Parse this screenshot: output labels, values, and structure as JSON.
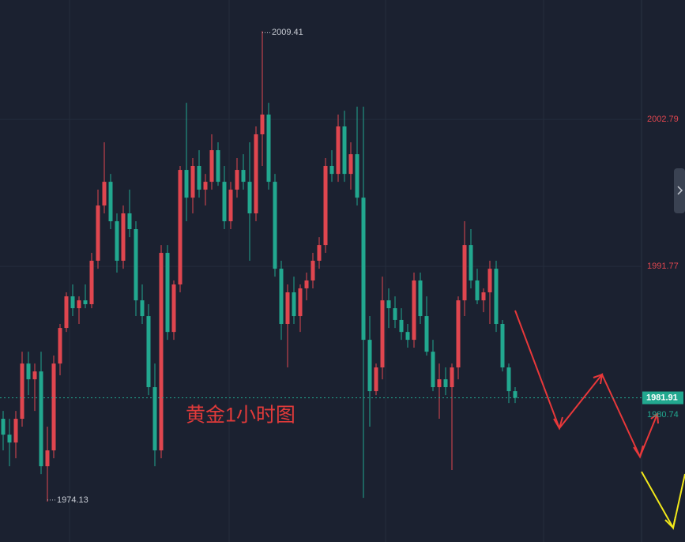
{
  "chart_data": {
    "type": "candlestick",
    "annotation": "黄金1小时图",
    "ylim": [
      1971.1,
      2011.74
    ],
    "yticks": [
      2002.79,
      1991.77
    ],
    "high_label": 2009.41,
    "low_label": 1974.13,
    "last_price": 1981.91,
    "second_price": 1980.74,
    "up_color": "#e0464f",
    "down_color": "#22a88f",
    "open": [
      1980.34,
      1979.15,
      1978.56,
      1980.34,
      1984.48,
      1983.3,
      1983.89,
      1976.78,
      1977.97,
      1984.48,
      1987.15,
      1989.52,
      1988.63,
      1989.22,
      1988.93,
      1992.19,
      1996.33,
      1998.11,
      1995.15,
      1992.19,
      1995.74,
      1994.56,
      1989.22,
      1988.04,
      1982.71,
      1977.97,
      1992.78,
      1986.85,
      1990.41,
      1999.0,
      1996.92,
      1999.3,
      1997.52,
      1998.11,
      2000.48,
      1998.11,
      1995.15,
      1997.52,
      1999.0,
      1998.11,
      1995.74,
      2001.67,
      2003.15,
      1998.11,
      1991.59,
      1987.45,
      1989.82,
      1988.04,
      1990.12,
      1990.71,
      1992.19,
      1993.37,
      1999.3,
      1998.7,
      2002.26,
      1998.7,
      2000.18,
      1996.92,
      1986.26,
      1982.41,
      1984.19,
      1989.22,
      1988.63,
      1987.75,
      1986.85,
      1986.26,
      1990.71,
      1988.04,
      1985.37,
      1982.71,
      1983.3,
      1982.71,
      1984.19,
      1989.22,
      1993.37,
      1990.71,
      1989.22,
      1989.82,
      1991.59,
      1987.45,
      1984.19,
      1982.41
    ],
    "high": [
      1980.93,
      1980.34,
      1980.93,
      1985.37,
      1985.37,
      1984.48,
      1985.37,
      1979.75,
      1985.08,
      1987.45,
      1989.82,
      1990.41,
      1989.52,
      1990.41,
      1992.78,
      1997.52,
      2001.07,
      1998.7,
      1995.74,
      1996.33,
      1997.52,
      1995.15,
      1990.41,
      1988.93,
      1984.48,
      1993.37,
      1993.37,
      1990.71,
      1999.3,
      2004.03,
      1999.89,
      2000.48,
      1998.7,
      2001.67,
      2001.07,
      1999.3,
      1998.11,
      1999.89,
      2000.18,
      2001.07,
      2002.26,
      2009.41,
      2004.03,
      1998.7,
      1992.19,
      1990.41,
      1991.0,
      1990.41,
      1991.3,
      1992.78,
      1993.96,
      1999.89,
      2000.48,
      2003.15,
      2003.44,
      2001.07,
      2003.74,
      2003.74,
      1988.04,
      1984.48,
      1991.0,
      1990.12,
      1989.52,
      1988.63,
      1987.45,
      1991.3,
      1991.3,
      1989.52,
      1986.26,
      1984.48,
      1984.19,
      1984.48,
      1989.52,
      1995.15,
      1994.56,
      1991.59,
      1990.12,
      1992.19,
      1992.19,
      1987.75,
      1984.48,
      1982.71
    ],
    "low": [
      1977.97,
      1976.78,
      1977.38,
      1979.75,
      1982.11,
      1980.93,
      1976.19,
      1974.13,
      1977.38,
      1983.6,
      1986.85,
      1988.04,
      1987.45,
      1988.63,
      1988.63,
      1991.59,
      1995.74,
      1994.56,
      1991.3,
      1991.59,
      1993.96,
      1988.04,
      1987.45,
      1982.11,
      1976.78,
      1977.38,
      1986.26,
      1986.26,
      1989.82,
      1995.15,
      1995.74,
      1996.92,
      1996.33,
      1997.52,
      1997.81,
      1994.56,
      1994.56,
      1996.92,
      1997.52,
      1992.19,
      1995.15,
      1999.3,
      1997.52,
      1991.0,
      1986.26,
      1984.19,
      1987.45,
      1986.85,
      1989.22,
      1990.12,
      1991.59,
      1992.78,
      1998.11,
      1998.11,
      1998.11,
      1997.52,
      1996.33,
      1974.41,
      1979.75,
      1982.11,
      1983.3,
      1987.15,
      1987.15,
      1986.26,
      1985.67,
      1985.67,
      1987.45,
      1985.08,
      1982.41,
      1980.34,
      1982.11,
      1976.49,
      1983.3,
      1988.04,
      1990.12,
      1988.93,
      1988.33,
      1987.45,
      1986.85,
      1983.89,
      1981.52,
      1981.52
    ],
    "close": [
      1979.15,
      1978.56,
      1980.34,
      1984.48,
      1983.3,
      1983.89,
      1976.78,
      1977.97,
      1984.48,
      1987.15,
      1989.52,
      1988.63,
      1989.22,
      1988.93,
      1992.19,
      1996.33,
      1998.11,
      1995.15,
      1992.19,
      1995.74,
      1994.56,
      1989.22,
      1988.04,
      1982.71,
      1977.97,
      1992.78,
      1986.85,
      1990.41,
      1999.0,
      1996.92,
      1999.3,
      1997.52,
      1998.11,
      2000.48,
      1998.11,
      1995.15,
      1997.52,
      1999.0,
      1998.11,
      1995.74,
      2001.67,
      2003.15,
      1998.11,
      1991.59,
      1987.45,
      1989.82,
      1988.04,
      1990.12,
      1990.71,
      1992.19,
      1993.37,
      1999.3,
      1998.7,
      2002.26,
      1998.7,
      2000.18,
      1996.92,
      1986.26,
      1982.41,
      1984.19,
      1989.22,
      1988.63,
      1987.75,
      1986.85,
      1986.26,
      1990.71,
      1988.04,
      1985.37,
      1982.71,
      1983.3,
      1982.71,
      1984.19,
      1989.22,
      1993.37,
      1990.71,
      1989.22,
      1989.82,
      1991.59,
      1987.45,
      1984.19,
      1982.41,
      1981.91
    ]
  }
}
